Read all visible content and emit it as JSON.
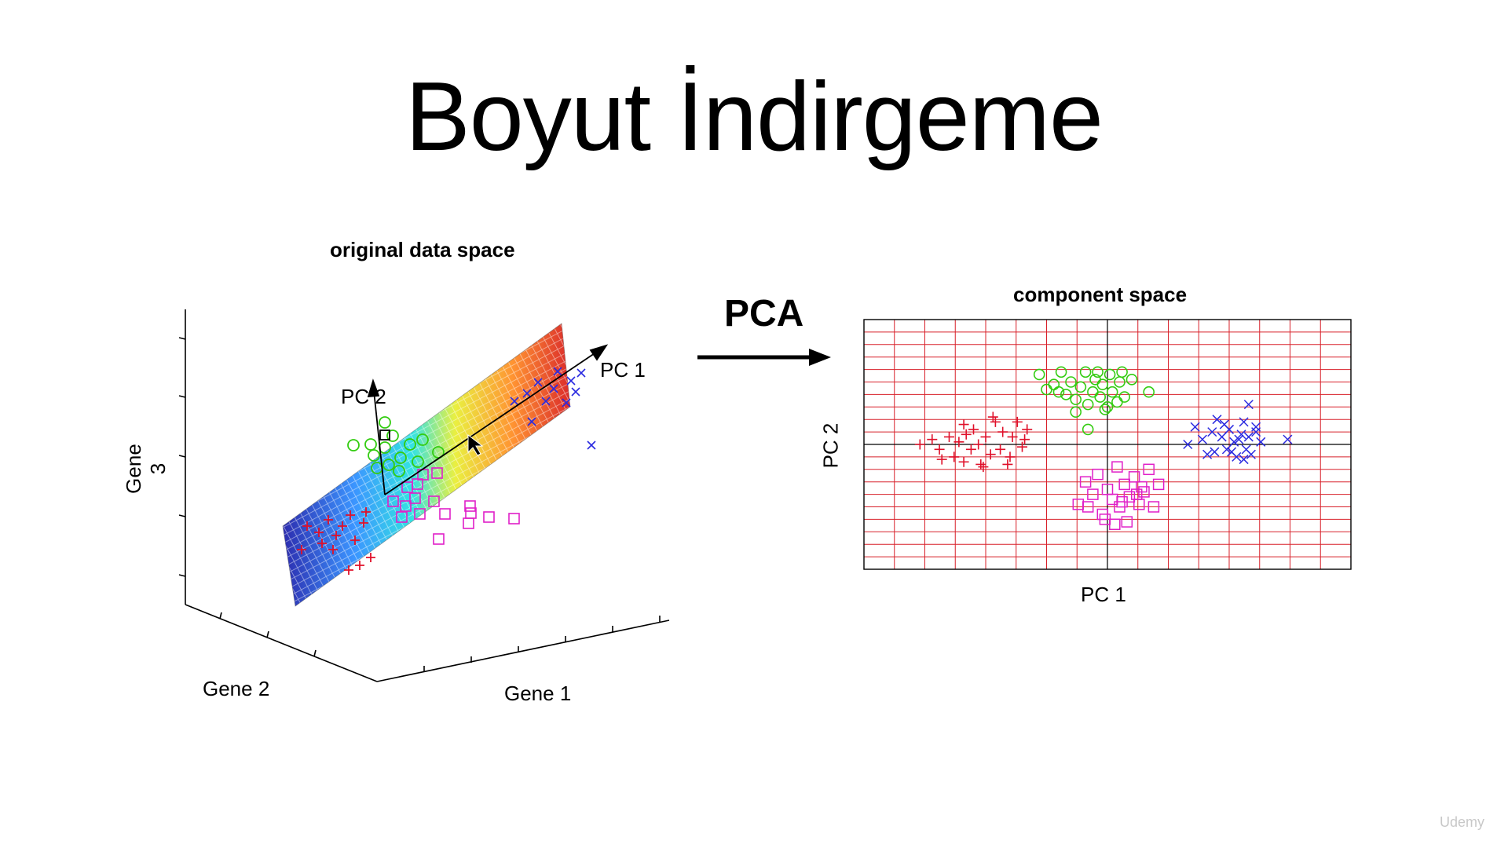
{
  "slide": {
    "title": "Boyut İndirgeme"
  },
  "left_figure": {
    "title": "original data space",
    "axis_labels": {
      "x": "Gene 1",
      "y": "Gene 2",
      "z": "Gene 3"
    },
    "vector_labels": {
      "pc1": "PC 1",
      "pc2": "PC 2"
    }
  },
  "transform": {
    "label": "PCA"
  },
  "chart_data": {
    "type": "scatter",
    "title": "component space",
    "xlabel": "PC 1",
    "ylabel": "PC 2",
    "xlim": [
      -10,
      10
    ],
    "ylim": [
      -5,
      5
    ],
    "grid": true,
    "series": [
      {
        "marker": "plus",
        "color": "#e0102a",
        "points": [
          [
            -7.7,
            0
          ],
          [
            -7.2,
            0.2
          ],
          [
            -6.9,
            -0.2
          ],
          [
            -6.5,
            0.3
          ],
          [
            -6.3,
            -0.5
          ],
          [
            -6.1,
            0.1
          ],
          [
            -5.9,
            -0.7
          ],
          [
            -5.8,
            0.4
          ],
          [
            -5.6,
            -0.2
          ],
          [
            -5.5,
            0.6
          ],
          [
            -5.3,
            0
          ],
          [
            -5.2,
            -0.8
          ],
          [
            -5,
            0.3
          ],
          [
            -4.8,
            -0.4
          ],
          [
            -4.6,
            0.9
          ],
          [
            -4.4,
            -0.2
          ],
          [
            -4.3,
            0.5
          ],
          [
            -4.1,
            -0.8
          ],
          [
            -3.9,
            0.3
          ],
          [
            -3.7,
            0.9
          ],
          [
            -3.5,
            -0.1
          ],
          [
            -3.3,
            0.6
          ],
          [
            -6.8,
            -0.6
          ],
          [
            -5.9,
            0.8
          ],
          [
            -4.7,
            1.1
          ],
          [
            -4,
            -0.5
          ],
          [
            -3.4,
            0.2
          ],
          [
            -5.1,
            -0.9
          ]
        ]
      },
      {
        "marker": "circle",
        "color": "#33cc11",
        "points": [
          [
            -2.8,
            2.8
          ],
          [
            -2.5,
            2.2
          ],
          [
            -2.2,
            2.4
          ],
          [
            -1.9,
            2.9
          ],
          [
            -1.7,
            2
          ],
          [
            -1.5,
            2.5
          ],
          [
            -1.3,
            1.8
          ],
          [
            -1.1,
            2.3
          ],
          [
            -0.9,
            2.9
          ],
          [
            -0.8,
            1.6
          ],
          [
            -0.6,
            2.1
          ],
          [
            -0.5,
            2.6
          ],
          [
            -0.3,
            1.9
          ],
          [
            -0.2,
            2.4
          ],
          [
            0,
            1.5
          ],
          [
            0.1,
            2.8
          ],
          [
            0.2,
            2.1
          ],
          [
            0.4,
            1.7
          ],
          [
            0.5,
            2.5
          ],
          [
            0.7,
            1.9
          ],
          [
            1,
            2.6
          ],
          [
            1.7,
            2.1
          ],
          [
            -1.3,
            1.3
          ],
          [
            -0.8,
            0.6
          ],
          [
            -0.1,
            1.4
          ],
          [
            0.6,
            2.9
          ],
          [
            -2,
            2.1
          ],
          [
            -0.4,
            2.9
          ]
        ]
      },
      {
        "marker": "square",
        "color": "#e020c8",
        "points": [
          [
            -1.2,
            -2.4
          ],
          [
            -0.9,
            -1.5
          ],
          [
            -0.6,
            -2
          ],
          [
            -0.4,
            -1.2
          ],
          [
            -0.2,
            -2.8
          ],
          [
            0,
            -1.8
          ],
          [
            0.2,
            -2.2
          ],
          [
            0.4,
            -0.9
          ],
          [
            0.5,
            -2.5
          ],
          [
            0.7,
            -1.6
          ],
          [
            0.9,
            -2.1
          ],
          [
            1.1,
            -1.3
          ],
          [
            1.3,
            -2.4
          ],
          [
            1.5,
            -1.9
          ],
          [
            1.7,
            -1
          ],
          [
            1.9,
            -2.5
          ],
          [
            2.1,
            -1.6
          ],
          [
            -0.8,
            -2.5
          ],
          [
            0.3,
            -3.2
          ],
          [
            0.8,
            -3.1
          ],
          [
            1.4,
            -1.7
          ],
          [
            0.6,
            -2.3
          ],
          [
            -0.1,
            -3
          ],
          [
            1.2,
            -2
          ]
        ]
      },
      {
        "marker": "x",
        "color": "#2a2ae0",
        "points": [
          [
            3.3,
            0
          ],
          [
            3.6,
            0.7
          ],
          [
            3.9,
            0.2
          ],
          [
            4.1,
            -0.4
          ],
          [
            4.3,
            0.5
          ],
          [
            4.5,
            1
          ],
          [
            4.7,
            0.3
          ],
          [
            4.9,
            -0.2
          ],
          [
            5,
            0.6
          ],
          [
            5.2,
            0.1
          ],
          [
            5.3,
            -0.5
          ],
          [
            5.5,
            0.4
          ],
          [
            5.6,
            0.9
          ],
          [
            5.7,
            -0.2
          ],
          [
            5.8,
            0.3
          ],
          [
            5.9,
            -0.4
          ],
          [
            6.1,
            0.7
          ],
          [
            6.3,
            0.1
          ],
          [
            4.4,
            -0.3
          ],
          [
            5.1,
            -0.3
          ],
          [
            5.8,
            1.6
          ],
          [
            6.1,
            0.5
          ],
          [
            5.4,
            0.2
          ],
          [
            7.4,
            0.2
          ],
          [
            4.8,
            0.8
          ],
          [
            5.6,
            -0.6
          ]
        ]
      }
    ]
  },
  "watermark": "Udemy"
}
